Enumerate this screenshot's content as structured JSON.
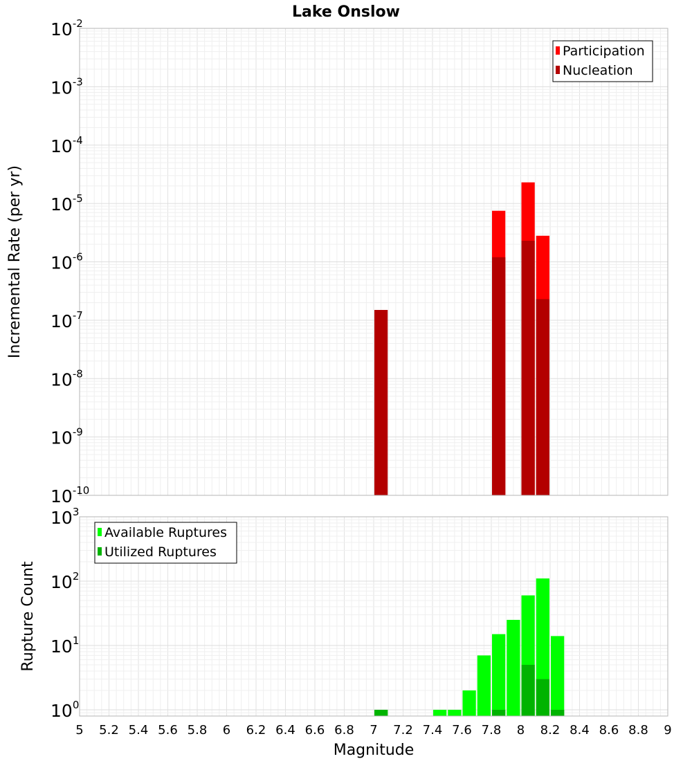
{
  "chart_data": [
    {
      "type": "bar",
      "title": "Lake Onslow",
      "xlabel": "",
      "ylabel": "Incremental Rate (per yr)",
      "yscale": "log",
      "ylim": [
        1e-10,
        0.01
      ],
      "y_tick_exponents": [
        "-2",
        "-3",
        "-4",
        "-5",
        "-6",
        "-7",
        "-8",
        "-9",
        "-10"
      ],
      "y_tick_base": "10",
      "xlim": [
        5,
        9
      ],
      "bar_width": 0.1,
      "legend": {
        "position": "top-right"
      },
      "grid": true,
      "series": [
        {
          "name": "Participation",
          "color": "#ff0000",
          "x": [
            7.85,
            8.05,
            8.15
          ],
          "values": [
            7.5e-06,
            2.3e-05,
            2.8e-06
          ]
        },
        {
          "name": "Nucleation",
          "color": "#b30000",
          "x": [
            7.05,
            7.85,
            8.05,
            8.15
          ],
          "values": [
            1.5e-07,
            1.2e-06,
            2.3e-06,
            2.3e-07
          ]
        }
      ]
    },
    {
      "type": "bar",
      "title": "",
      "xlabel": "Magnitude",
      "ylabel": "Rupture Count",
      "yscale": "log",
      "ylim": [
        0.8,
        1000
      ],
      "y_tick_exponents": [
        "3",
        "2",
        "1",
        "0"
      ],
      "y_tick_base": "10",
      "xlim": [
        5,
        9
      ],
      "x_ticks": [
        "5",
        "5.2",
        "5.4",
        "5.6",
        "5.8",
        "6",
        "6.2",
        "6.4",
        "6.6",
        "6.8",
        "7",
        "7.2",
        "7.4",
        "7.6",
        "7.8",
        "8",
        "8.2",
        "8.4",
        "8.6",
        "8.8",
        "9"
      ],
      "bar_width": 0.1,
      "legend": {
        "position": "top-left"
      },
      "grid": true,
      "series": [
        {
          "name": "Available Ruptures",
          "color": "#00ff00",
          "x": [
            7.05,
            7.45,
            7.55,
            7.65,
            7.75,
            7.85,
            7.95,
            8.05,
            8.15,
            8.25
          ],
          "values": [
            1,
            1,
            1,
            2,
            7,
            15,
            25,
            60,
            110,
            14
          ]
        },
        {
          "name": "Utilized Ruptures",
          "color": "#00b300",
          "x": [
            7.05,
            7.85,
            8.05,
            8.15,
            8.25
          ],
          "values": [
            1,
            1,
            5,
            3,
            1
          ]
        }
      ]
    }
  ]
}
